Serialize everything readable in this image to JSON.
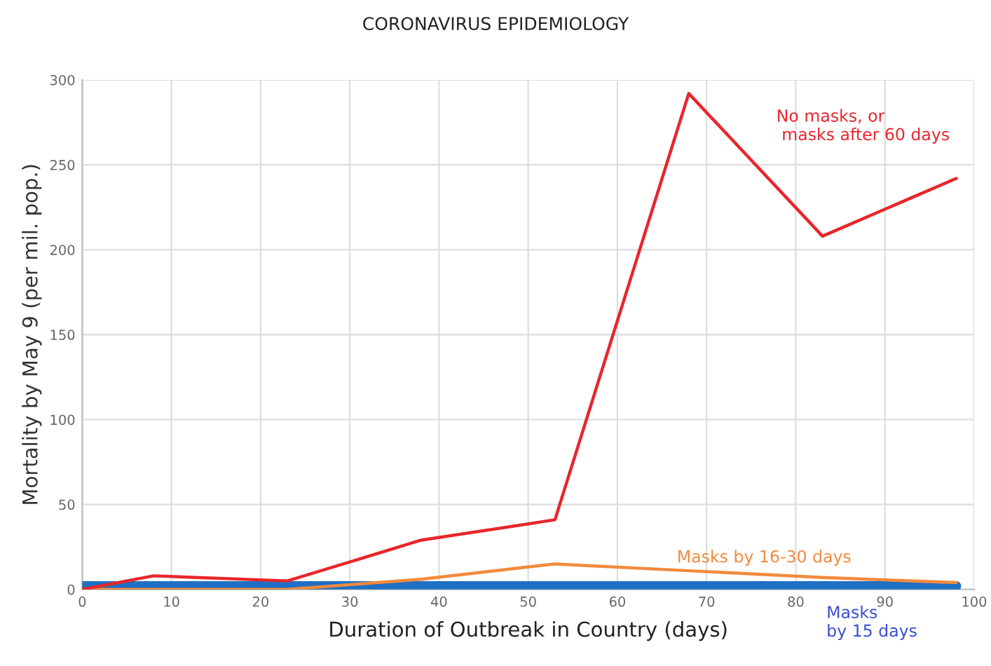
{
  "chart_data": {
    "type": "line",
    "title": "CORONAVIRUS EPIDEMIOLOGY",
    "xlabel": "Duration of Outbreak in Country (days)",
    "ylabel": "Mortality by May 9 (per mil. pop.)",
    "series": [
      {
        "name": "No masks, or\n masks after 60 days",
        "color": "#e8262b",
        "x": [
          0,
          8,
          23,
          38,
          53,
          68,
          83,
          98
        ],
        "values": [
          0,
          8,
          5,
          29,
          41,
          292,
          208,
          242
        ]
      },
      {
        "name": "Masks by 16-30 days",
        "color": "#f28a3c",
        "x": [
          0,
          23,
          38,
          53,
          68,
          83,
          98
        ],
        "values": [
          0,
          0,
          6,
          15,
          11,
          7,
          4
        ]
      },
      {
        "name": "Masks\nby 15 days",
        "color": "#1f6fc5",
        "x": [
          0,
          23,
          38,
          53,
          68,
          83,
          98
        ],
        "values": [
          2,
          2,
          2,
          2,
          2,
          2,
          2
        ]
      }
    ],
    "xlim": [
      0,
      100
    ],
    "xticks": [
      0,
      10,
      20,
      30,
      40,
      50,
      60,
      70,
      80,
      90,
      100
    ],
    "ylim": [
      0,
      300
    ],
    "yticks": [
      0,
      50,
      100,
      150,
      200,
      250,
      300
    ],
    "grid": true,
    "marker": "none",
    "line_style": "solid",
    "legend": false
  }
}
